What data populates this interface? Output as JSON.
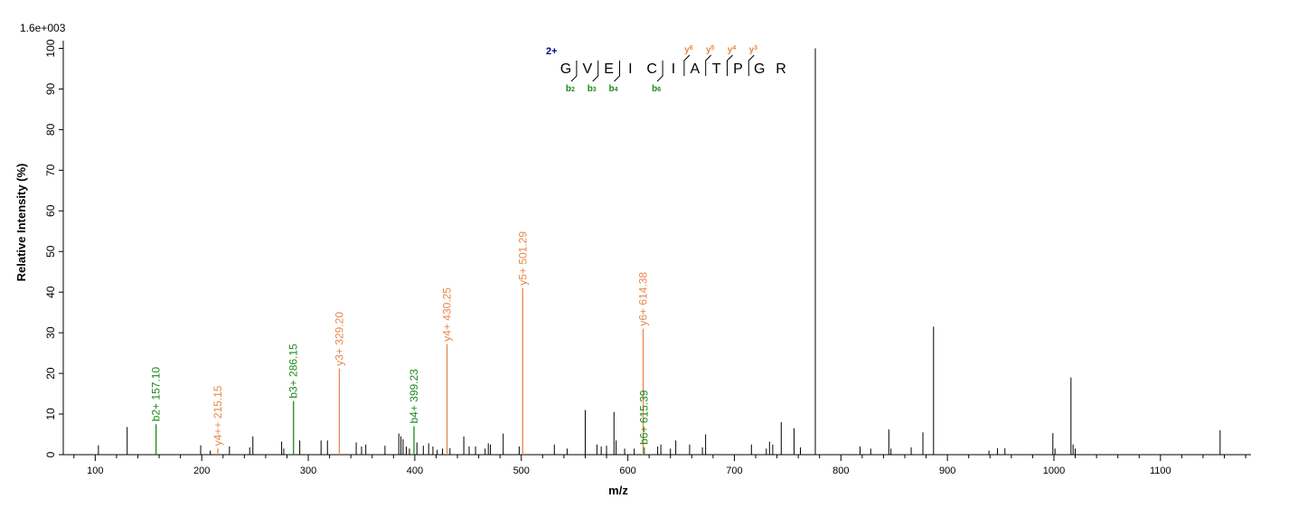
{
  "chart_data": {
    "type": "bar",
    "subtype": "mass-spectrum",
    "max_intensity_label": "1.6e+003",
    "xlabel": "m/z",
    "ylabel": "Relative   Intensity (%)",
    "xlim": [
      70,
      1185
    ],
    "ylim": [
      0,
      101
    ],
    "x_ticks": [
      100,
      200,
      300,
      400,
      500,
      600,
      700,
      800,
      900,
      1000,
      1100
    ],
    "y_ticks": [
      0,
      10,
      20,
      30,
      40,
      50,
      60,
      70,
      80,
      90,
      100
    ],
    "colors": {
      "b_ion": "#1a8a1a",
      "y_ion": "#e8864a",
      "unassigned": "#000000",
      "charge": "#00008b"
    },
    "annotated_peaks": [
      {
        "mz": 157.1,
        "intensity": 7.5,
        "label": "b2+ 157.10",
        "series": "b"
      },
      {
        "mz": 215.15,
        "intensity": 1.5,
        "label": "y4++ 215.15",
        "series": "y"
      },
      {
        "mz": 286.15,
        "intensity": 13.2,
        "label": "b3+ 286.15",
        "series": "b"
      },
      {
        "mz": 329.2,
        "intensity": 21.2,
        "label": "y3+ 329.20",
        "series": "y"
      },
      {
        "mz": 399.23,
        "intensity": 7.0,
        "label": "b4+ 399.23",
        "series": "b"
      },
      {
        "mz": 430.25,
        "intensity": 27.2,
        "label": "y4+ 430.25",
        "series": "y"
      },
      {
        "mz": 501.29,
        "intensity": 41.0,
        "label": "y5+ 501.29",
        "series": "y"
      },
      {
        "mz": 614.38,
        "intensity": 31.0,
        "label": "y6+ 614.38",
        "series": "y"
      },
      {
        "mz": 615.39,
        "intensity": 1.8,
        "label": "b6+ 615.39",
        "series": "b"
      }
    ],
    "peaks": [
      [
        103,
        2.3
      ],
      [
        130,
        6.8
      ],
      [
        199,
        2.3
      ],
      [
        208,
        1.0
      ],
      [
        226,
        2.0
      ],
      [
        245,
        1.8
      ],
      [
        248,
        4.5
      ],
      [
        275,
        3.2
      ],
      [
        277,
        1.5
      ],
      [
        292,
        3.5
      ],
      [
        312,
        3.5
      ],
      [
        318,
        3.5
      ],
      [
        345,
        3.0
      ],
      [
        350,
        2.0
      ],
      [
        354,
        2.5
      ],
      [
        372,
        2.2
      ],
      [
        385,
        5.2
      ],
      [
        387,
        4.5
      ],
      [
        389,
        3.8
      ],
      [
        392,
        2.0
      ],
      [
        395,
        1.5
      ],
      [
        402,
        3.0
      ],
      [
        408,
        2.2
      ],
      [
        413,
        2.8
      ],
      [
        417,
        2.0
      ],
      [
        421,
        1.2
      ],
      [
        426,
        1.5
      ],
      [
        433,
        1.6
      ],
      [
        446,
        4.5
      ],
      [
        451,
        2.0
      ],
      [
        457,
        2.0
      ],
      [
        466,
        1.5
      ],
      [
        469,
        2.8
      ],
      [
        471,
        2.5
      ],
      [
        483,
        5.2
      ],
      [
        498,
        2.0
      ],
      [
        531,
        2.5
      ],
      [
        543,
        1.5
      ],
      [
        560,
        11.0
      ],
      [
        571,
        2.5
      ],
      [
        575,
        2.0
      ],
      [
        580,
        2.2
      ],
      [
        587,
        10.5
      ],
      [
        589,
        3.5
      ],
      [
        597,
        1.5
      ],
      [
        606,
        1.5
      ],
      [
        628,
        2.0
      ],
      [
        631,
        2.5
      ],
      [
        640,
        1.5
      ],
      [
        645,
        3.5
      ],
      [
        658,
        2.5
      ],
      [
        670,
        1.8
      ],
      [
        673,
        5.0
      ],
      [
        716,
        2.5
      ],
      [
        730,
        1.5
      ],
      [
        733,
        3.2
      ],
      [
        736,
        2.5
      ],
      [
        744,
        8.0
      ],
      [
        756,
        6.5
      ],
      [
        762,
        1.8
      ],
      [
        776,
        100
      ],
      [
        818,
        2.0
      ],
      [
        828,
        1.5
      ],
      [
        845,
        6.2
      ],
      [
        847,
        1.5
      ],
      [
        866,
        1.8
      ],
      [
        877,
        5.5
      ],
      [
        887,
        31.5
      ],
      [
        939,
        1.0
      ],
      [
        947,
        1.6
      ],
      [
        954,
        1.6
      ],
      [
        999,
        5.3
      ],
      [
        1001,
        1.5
      ],
      [
        1016,
        19.0
      ],
      [
        1018,
        2.5
      ],
      [
        1020,
        1.5
      ],
      [
        1156,
        6.0
      ]
    ],
    "sequence": {
      "charge": "2+",
      "residues": [
        "G",
        "V",
        "E",
        "I",
        "C",
        "I",
        "A",
        "T",
        "P",
        "G",
        "R"
      ],
      "b_ions": [
        {
          "after": 1,
          "label": "b",
          "num": "2"
        },
        {
          "after": 2,
          "label": "b",
          "num": "3"
        },
        {
          "after": 3,
          "label": "b",
          "num": "4"
        },
        {
          "after": 5,
          "label": "b",
          "num": "6"
        }
      ],
      "y_ions": [
        {
          "after": 6,
          "label": "y",
          "num": "6"
        },
        {
          "after": 7,
          "label": "y",
          "num": "5"
        },
        {
          "after": 8,
          "label": "y",
          "num": "4"
        },
        {
          "after": 9,
          "label": "y",
          "num": "3"
        }
      ]
    }
  }
}
